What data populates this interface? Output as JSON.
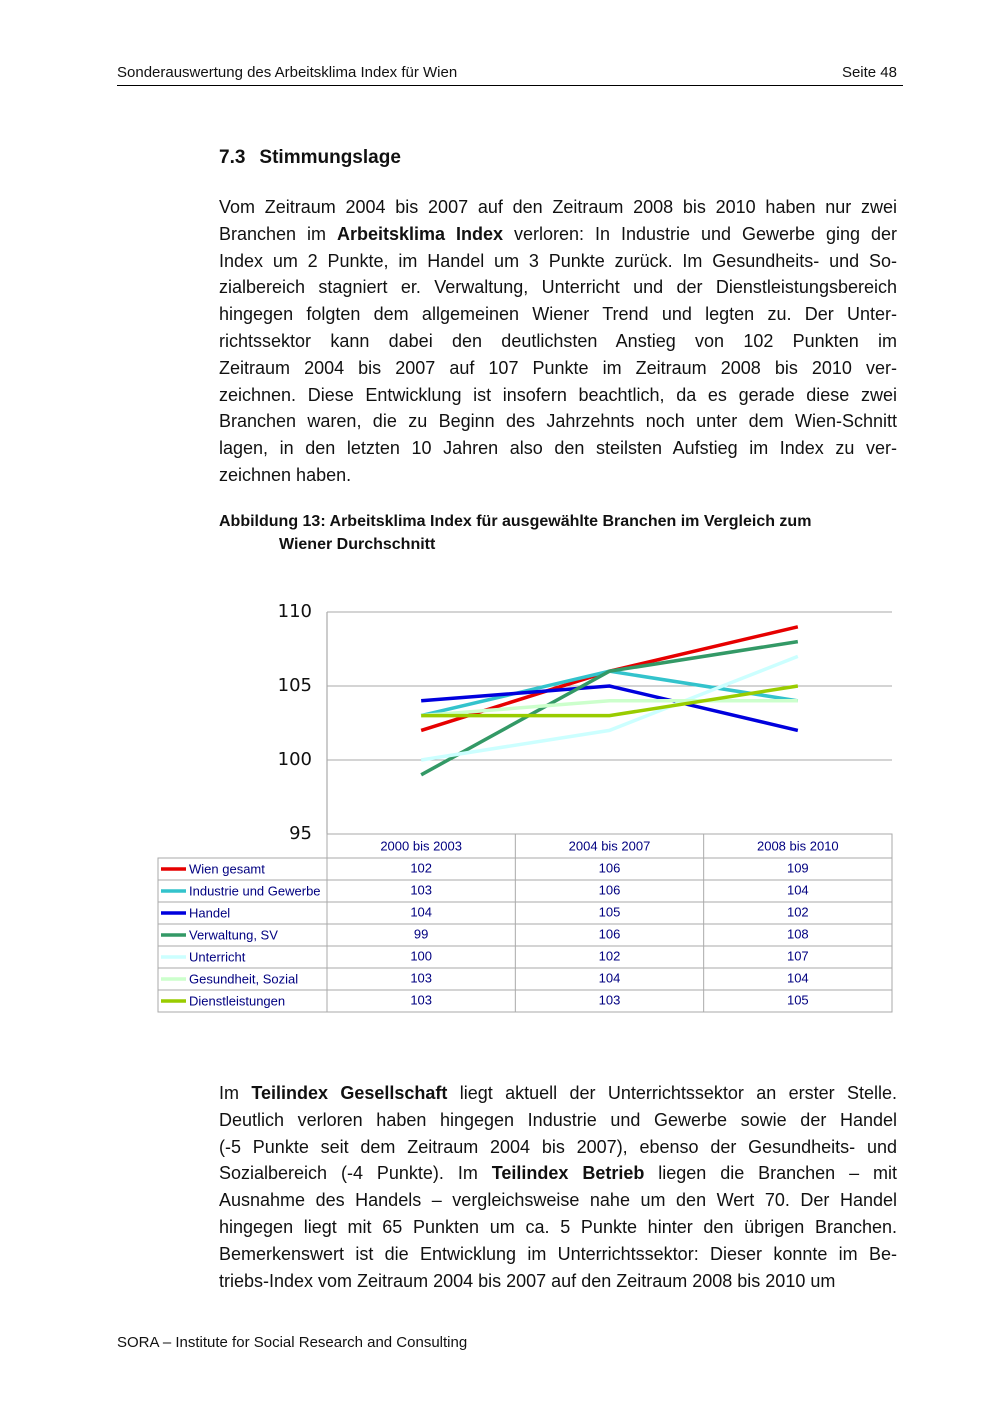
{
  "header": {
    "title": "Sonderauswertung des Arbeitsklima Index für Wien",
    "page": "Seite 48"
  },
  "section": {
    "number": "7.3",
    "title": "Stimmungslage"
  },
  "paragraphs": [
    {
      "lines": [
        [
          "Vom Zeitraum 2004 bis 2007 auf den Zeitraum 2008 bis 2010 haben nur zwei"
        ],
        [
          "Branchen im ",
          "Arbeitsklima Index",
          " verloren: In Industrie und Gewerbe ging der"
        ],
        [
          "Index um 2 Punkte, im Handel um 3 Punkte zurück. Im Gesundheits- und So-"
        ],
        [
          "zialbereich stagniert er. Verwaltung, Unterricht und der Dienstleistungsbereich"
        ],
        [
          "hingegen folgten dem allgemeinen Wiener Trend und legten zu. Der Unter-"
        ],
        [
          "richtssektor kann dabei den deutlichsten Anstieg von 102 Punkten im"
        ],
        [
          "Zeitraum 2004 bis 2007 auf 107 Punkte im Zeitraum 2008 bis 2010 ver-"
        ],
        [
          "zeichnen. Diese Entwicklung ist insofern beachtlich, da es gerade diese zwei"
        ],
        [
          "Branchen waren, die zu Beginn des Jahrzehnts noch unter dem Wien-Schnitt"
        ],
        [
          "lagen, in den letzten 10 Jahren also den steilsten Aufstieg im Index zu ver-"
        ],
        [
          "zeichnen haben."
        ]
      ]
    },
    {
      "lines": [
        [
          "Im ",
          "Teilindex Gesellschaft",
          " liegt aktuell der Unterrichtssektor an erster Stelle."
        ],
        [
          "Deutlich verloren haben hingegen Industrie und Gewerbe sowie der Handel"
        ],
        [
          "(-5 Punkte seit dem Zeitraum 2004 bis 2007), ebenso der Gesundheits- und"
        ],
        [
          "Sozialbereich (-4 Punkte). Im ",
          "Teilindex Betrieb",
          " liegen die Branchen – mit"
        ],
        [
          "Ausnahme des Handels – vergleichsweise nahe um den Wert 70. Der Handel"
        ],
        [
          "hingegen liegt mit 65 Punkten um ca. 5 Punkte hinter den übrigen Branchen."
        ],
        [
          "Bemerkenswert ist die Entwicklung im Unterrichtssektor: Dieser konnte im Be-"
        ],
        [
          "triebs-Index vom Zeitraum 2004 bis 2007 auf den Zeitraum 2008 bis 2010 um"
        ]
      ]
    }
  ],
  "caption": [
    "Abbildung 13: Arbeitsklima Index für ausgewählte Branchen im Vergleich zum",
    "Wiener Durchschnitt"
  ],
  "chart_data": {
    "type": "line",
    "categories": [
      "2000 bis 2003",
      "2004 bis 2007",
      "2008 bis 2010"
    ],
    "series": [
      {
        "name": "Wien gesamt",
        "color": "#e60000",
        "values": [
          102,
          106,
          109
        ]
      },
      {
        "name": "Industrie und Gewerbe",
        "color": "#33c3cc",
        "values": [
          103,
          106,
          104
        ]
      },
      {
        "name": "Handel",
        "color": "#0000dd",
        "values": [
          104,
          105,
          102
        ]
      },
      {
        "name": "Verwaltung, SV",
        "color": "#339966",
        "values": [
          99,
          106,
          108
        ]
      },
      {
        "name": "Unterricht",
        "color": "#ccffff",
        "values": [
          100,
          102,
          107
        ]
      },
      {
        "name": "Gesundheit, Sozial",
        "color": "#ccffcc",
        "values": [
          103,
          104,
          104
        ]
      },
      {
        "name": "Dienstleistungen",
        "color": "#99cc00",
        "values": [
          103,
          103,
          105
        ]
      }
    ],
    "ylim": [
      95,
      110
    ],
    "yticks": [
      95,
      100,
      105,
      110
    ],
    "grid": true
  },
  "footer": "SORA – Institute for Social Research and Consulting"
}
